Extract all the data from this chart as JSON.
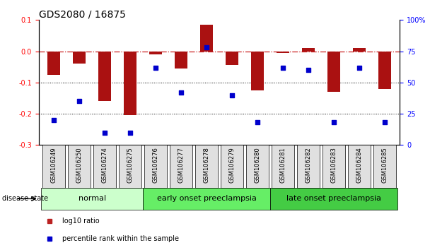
{
  "title": "GDS2080 / 16875",
  "samples": [
    "GSM106249",
    "GSM106250",
    "GSM106274",
    "GSM106275",
    "GSM106276",
    "GSM106277",
    "GSM106278",
    "GSM106279",
    "GSM106280",
    "GSM106281",
    "GSM106282",
    "GSM106283",
    "GSM106284",
    "GSM106285"
  ],
  "log10_ratio": [
    -0.075,
    -0.04,
    -0.16,
    -0.205,
    -0.01,
    -0.055,
    0.085,
    -0.045,
    -0.125,
    -0.005,
    0.01,
    -0.13,
    0.01,
    -0.12
  ],
  "percentile_rank": [
    20,
    35,
    10,
    10,
    62,
    42,
    78,
    40,
    18,
    62,
    60,
    18,
    62,
    18
  ],
  "ylim_left": [
    -0.3,
    0.1
  ],
  "ylim_right": [
    0,
    100
  ],
  "yticks_left": [
    -0.3,
    -0.2,
    -0.1,
    0.0,
    0.1
  ],
  "yticks_right": [
    0,
    25,
    50,
    75,
    100
  ],
  "ytick_labels_right": [
    "0",
    "25",
    "50",
    "75",
    "100%"
  ],
  "groups": [
    {
      "label": "normal",
      "start": 0,
      "end": 4,
      "color": "#ccffcc"
    },
    {
      "label": "early onset preeclampsia",
      "start": 4,
      "end": 9,
      "color": "#66ee66"
    },
    {
      "label": "late onset preeclampsia",
      "start": 9,
      "end": 14,
      "color": "#44cc44"
    }
  ],
  "disease_state_label": "disease state",
  "bar_color": "#aa1111",
  "dot_color": "#0000cc",
  "hline_color": "#cc2222",
  "hline_style": "-.",
  "dotline_color": "#000000",
  "dotline_style": ":",
  "bar_width": 0.5,
  "legend_items": [
    {
      "label": "log10 ratio",
      "color": "#bb2222",
      "marker": "s"
    },
    {
      "label": "percentile rank within the sample",
      "color": "#0000cc",
      "marker": "s"
    }
  ],
  "title_fontsize": 10,
  "tick_fontsize": 7,
  "label_fontsize": 8,
  "group_label_fontsize": 8,
  "xtick_fontsize": 6
}
